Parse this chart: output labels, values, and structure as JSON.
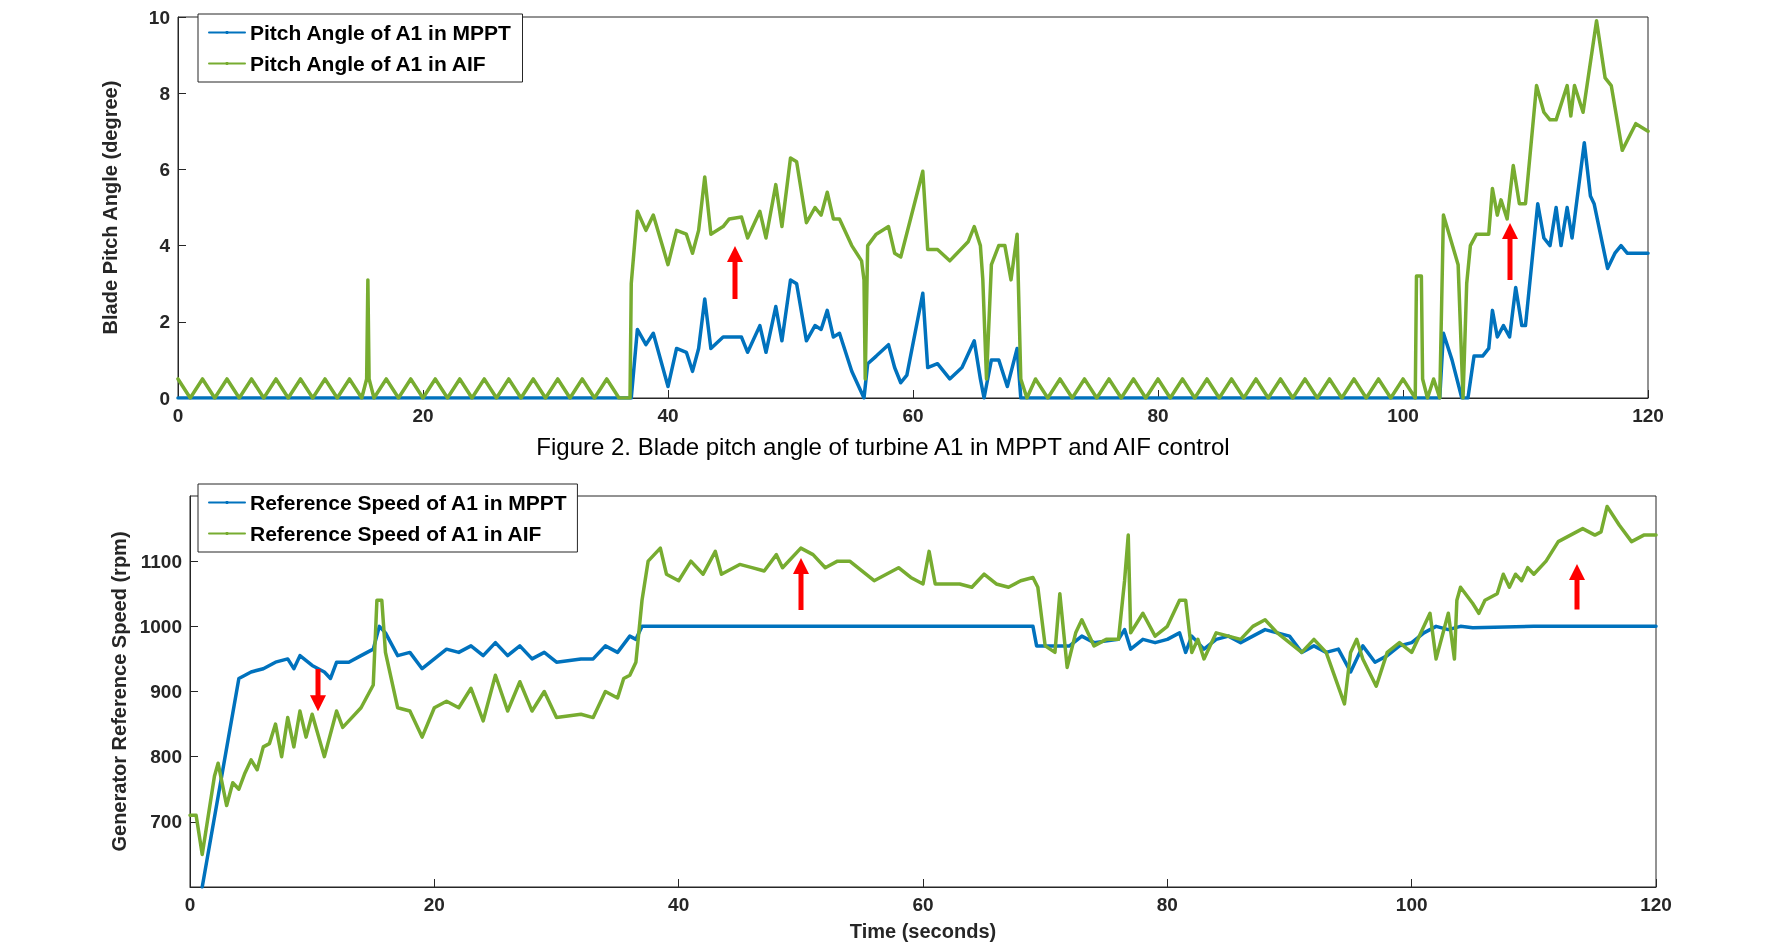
{
  "chart_data": [
    {
      "type": "line",
      "ylabel": "Blade Pitch Angle (degree)",
      "xlim": [
        0,
        120
      ],
      "xticks": [
        0,
        20,
        40,
        60,
        80,
        100,
        120
      ],
      "ylim": [
        0,
        10
      ],
      "yticks": [
        0,
        2,
        4,
        6,
        8,
        10
      ],
      "grid": false,
      "legend": "top left",
      "marker": "none",
      "line_style": "solid",
      "annotations": [
        "Figure 2. Blade pitch angle of turbine A1 in MPPT and AIF control"
      ],
      "series": [
        {
          "name": "Pitch Angle of A1 in MPPT",
          "color": "#0072bd",
          "x": [
            0,
            37,
            37.5,
            38.2,
            38.8,
            40,
            40.7,
            41.5,
            42,
            42.5,
            43,
            43.5,
            44.5,
            46,
            46.5,
            47.5,
            48,
            48.8,
            49.3,
            50,
            50.5,
            51.3,
            52,
            52.5,
            53,
            53.5,
            54,
            55,
            56,
            56.3,
            57,
            58,
            58.5,
            59,
            59.5,
            60.8,
            61.2,
            62,
            63,
            64,
            65,
            65.5,
            65.8,
            66.4,
            67,
            67.7,
            68.5,
            68.8,
            103,
            103.3,
            104,
            104.8,
            105.3,
            105.8,
            106.5,
            107,
            107.3,
            107.7,
            108.2,
            108.7,
            109.2,
            109.7,
            110,
            111,
            111.5,
            112,
            112.5,
            112.9,
            113.4,
            113.8,
            114.8,
            115.3,
            115.6,
            116.7,
            117.3,
            117.8,
            118.3,
            120
          ],
          "values": [
            0,
            0,
            1.8,
            1.4,
            1.7,
            0.3,
            1.3,
            1.2,
            0.7,
            1.3,
            2.6,
            1.3,
            1.6,
            1.6,
            1.2,
            1.9,
            1.2,
            2.4,
            1.5,
            3.1,
            3.0,
            1.5,
            1.9,
            1.8,
            2.3,
            1.6,
            1.7,
            0.7,
            0,
            0.9,
            1.1,
            1.4,
            0.8,
            0.4,
            0.6,
            2.75,
            0.8,
            0.9,
            0.5,
            0.8,
            1.5,
            0.5,
            0,
            1.0,
            1.0,
            0.3,
            1.3,
            0,
            0,
            1.7,
            1.0,
            0,
            0,
            1.1,
            1.1,
            1.3,
            2.3,
            1.6,
            1.9,
            1.6,
            2.9,
            1.9,
            1.9,
            5.1,
            4.2,
            4.0,
            5.0,
            4.0,
            5.0,
            4.2,
            6.7,
            5.3,
            5.1,
            3.4,
            3.8,
            4.0,
            3.8,
            3.8
          ]
        },
        {
          "name": "Pitch Angle of A1 in AIF",
          "color": "#77ac30",
          "x": [
            0,
            1,
            2,
            3,
            4,
            5,
            6,
            7,
            8,
            9,
            10,
            11,
            12,
            13,
            14,
            15,
            15.4,
            15.5,
            15.6,
            16,
            17,
            18,
            19,
            20,
            21,
            22,
            23,
            24,
            25,
            26,
            27,
            28,
            29,
            30,
            31,
            32,
            33,
            34,
            35,
            36,
            36.9,
            37,
            37.5,
            38.2,
            38.8,
            40,
            40.7,
            41.5,
            42,
            42.5,
            43,
            43.5,
            44.5,
            45,
            46,
            46.5,
            47.5,
            48,
            48.8,
            49.3,
            50,
            50.5,
            51.3,
            52,
            52.5,
            53,
            53.5,
            54,
            55,
            55.8,
            56,
            56.1,
            56.3,
            57,
            58,
            58.5,
            59,
            60.8,
            61.2,
            62,
            63,
            64.5,
            65,
            65.5,
            65.7,
            66,
            66.4,
            67,
            67.5,
            68,
            68.5,
            68.8,
            69.3,
            70,
            71,
            72,
            73,
            74,
            75,
            76,
            77,
            78,
            79,
            80,
            81,
            82,
            83,
            84,
            85,
            86,
            87,
            88,
            89,
            90,
            91,
            92,
            93,
            94,
            95,
            96,
            97,
            98,
            99,
            100,
            101,
            101.1,
            101.5,
            101.6,
            102,
            102.5,
            103,
            103.3,
            104.5,
            104.9,
            105.2,
            105.5,
            106,
            107,
            107.3,
            107.7,
            108,
            108.5,
            109,
            109.5,
            110,
            110.9,
            111.5,
            112,
            112.5,
            113.4,
            113.7,
            114,
            114.7,
            115.8,
            116.5,
            117,
            117.9,
            119,
            120
          ],
          "values": [
            0.5,
            0,
            0.5,
            0,
            0.5,
            0,
            0.5,
            0,
            0.5,
            0,
            0.5,
            0,
            0.5,
            0,
            0.5,
            0,
            0.5,
            3.1,
            0.5,
            0,
            0.5,
            0,
            0.5,
            0,
            0.5,
            0,
            0.5,
            0,
            0.5,
            0,
            0.5,
            0,
            0.5,
            0,
            0.5,
            0,
            0.5,
            0,
            0.5,
            0,
            0,
            3,
            4.9,
            4.4,
            4.8,
            3.5,
            4.4,
            4.3,
            3.8,
            4.4,
            5.8,
            4.3,
            4.5,
            4.7,
            4.75,
            4.2,
            4.9,
            4.2,
            5.6,
            4.5,
            6.3,
            6.2,
            4.6,
            5.0,
            4.8,
            5.4,
            4.7,
            4.7,
            4.0,
            3.6,
            3.1,
            0.5,
            4.0,
            4.3,
            4.5,
            3.8,
            3.7,
            5.95,
            3.9,
            3.9,
            3.6,
            4.1,
            4.5,
            4.0,
            3.1,
            0.5,
            3.5,
            4.0,
            4.0,
            3.1,
            4.3,
            0.5,
            0,
            0.5,
            0,
            0.5,
            0,
            0.5,
            0,
            0.5,
            0,
            0.5,
            0,
            0.5,
            0,
            0.5,
            0,
            0.5,
            0,
            0.5,
            0,
            0.5,
            0,
            0.5,
            0,
            0.5,
            0,
            0.5,
            0,
            0.5,
            0,
            0.5,
            0,
            0.5,
            0,
            3.2,
            3.2,
            0.5,
            0,
            0.5,
            0,
            4.8,
            3.5,
            0,
            3.0,
            4.0,
            4.3,
            4.3,
            5.5,
            4.8,
            5.2,
            4.7,
            6.1,
            5.1,
            5.1,
            8.2,
            7.5,
            7.3,
            7.3,
            8.2,
            7.4,
            8.2,
            7.5,
            9.9,
            8.4,
            8.2,
            6.5,
            7.2,
            7.0
          ]
        }
      ]
    },
    {
      "type": "line",
      "xlabel": "Time (seconds)",
      "ylabel": "Generator Reference Speed (rpm)",
      "xlim": [
        0,
        120
      ],
      "xticks": [
        0,
        20,
        40,
        60,
        80,
        100,
        120
      ],
      "ylim": [
        600,
        1200
      ],
      "yticks": [
        700,
        800,
        900,
        1000,
        1100
      ],
      "grid": false,
      "legend": "top left",
      "marker": "none",
      "line_style": "solid",
      "series": [
        {
          "name": "Reference Speed of A1 in MPPT",
          "color": "#0072bd",
          "x": [
            1,
            4,
            5,
            6,
            7,
            8,
            8.5,
            9,
            10,
            11,
            11.5,
            12,
            13,
            14,
            15,
            15.5,
            16,
            17,
            18,
            19,
            20,
            21,
            22,
            23,
            24,
            25,
            26,
            27,
            28,
            29,
            30,
            32,
            33,
            34,
            35,
            36,
            36.5,
            37,
            45,
            55,
            69,
            69.3,
            72,
            73,
            74,
            76,
            76.5,
            77,
            78,
            79,
            80,
            81,
            81.5,
            82,
            83,
            84,
            85,
            86,
            87,
            88,
            89,
            90,
            91,
            92,
            93,
            94,
            95,
            96,
            97,
            98,
            99,
            100,
            101,
            102,
            103,
            104,
            105,
            110,
            115,
            120
          ],
          "values": [
            600,
            920,
            930,
            935,
            945,
            950,
            935,
            955,
            940,
            930,
            920,
            945,
            945,
            955,
            965,
            1000,
            990,
            955,
            960,
            935,
            950,
            965,
            960,
            970,
            955,
            975,
            955,
            970,
            950,
            960,
            945,
            950,
            950,
            970,
            960,
            985,
            980,
            1000,
            1000,
            1000,
            1000,
            970,
            970,
            985,
            975,
            980,
            995,
            965,
            980,
            975,
            980,
            990,
            960,
            985,
            965,
            980,
            985,
            975,
            985,
            995,
            990,
            985,
            960,
            970,
            960,
            965,
            930,
            970,
            945,
            955,
            970,
            975,
            990,
            1000,
            995,
            1000,
            998,
            1000,
            1000,
            1000
          ]
        },
        {
          "name": "Reference Speed of A1 in AIF",
          "color": "#77ac30",
          "x": [
            0,
            0.5,
            1,
            2,
            2.3,
            3,
            3.5,
            4,
            4.5,
            5,
            5.5,
            6,
            6.5,
            7,
            7.5,
            8,
            8.5,
            9,
            9.5,
            10,
            11,
            12,
            12.5,
            13,
            14,
            15,
            15.3,
            15.7,
            16,
            17,
            18,
            19,
            20,
            21,
            22,
            23,
            24,
            25,
            26,
            27,
            28,
            29,
            30,
            32,
            33,
            34,
            35,
            35.5,
            36,
            36.5,
            37,
            37.5,
            38.5,
            39,
            40,
            41,
            42,
            43,
            43.5,
            45,
            46,
            47,
            48,
            48.5,
            50,
            51,
            52,
            53,
            54,
            55,
            56,
            57,
            58,
            59,
            60,
            60.5,
            61,
            62,
            63,
            64,
            65,
            66,
            67,
            68,
            69,
            69.4,
            70,
            70.8,
            71.2,
            71.8,
            72.5,
            73,
            74,
            75,
            76,
            76.5,
            76.8,
            77,
            78,
            79,
            80,
            81,
            81.5,
            82,
            82.5,
            83,
            84,
            85,
            86,
            87,
            88,
            89,
            90,
            91,
            92,
            93,
            94.5,
            95,
            95.5,
            96,
            97.1,
            98,
            99,
            100,
            101,
            101.5,
            102,
            103,
            103.5,
            103.7,
            104,
            105,
            105.5,
            106,
            107,
            107.5,
            108,
            108.5,
            109,
            109.5,
            110,
            111,
            112,
            113,
            114,
            115,
            115.5,
            116,
            117,
            118,
            119,
            120
          ],
          "values": [
            710,
            710,
            650,
            770,
            790,
            725,
            760,
            750,
            775,
            795,
            780,
            815,
            820,
            850,
            800,
            860,
            815,
            870,
            830,
            865,
            800,
            870,
            845,
            855,
            875,
            910,
            1040,
            1040,
            960,
            875,
            870,
            830,
            875,
            885,
            875,
            905,
            855,
            925,
            870,
            915,
            870,
            900,
            860,
            865,
            860,
            900,
            890,
            920,
            925,
            945,
            1040,
            1100,
            1120,
            1080,
            1070,
            1100,
            1080,
            1115,
            1080,
            1095,
            1090,
            1085,
            1110,
            1090,
            1120,
            1110,
            1090,
            1100,
            1100,
            1085,
            1070,
            1080,
            1090,
            1075,
            1065,
            1115,
            1065,
            1065,
            1065,
            1060,
            1080,
            1065,
            1060,
            1070,
            1075,
            1060,
            970,
            960,
            1050,
            937,
            990,
            1010,
            970,
            980,
            980,
            1070,
            1140,
            990,
            1020,
            985,
            1000,
            1040,
            1040,
            960,
            980,
            950,
            990,
            985,
            980,
            1000,
            1010,
            990,
            975,
            960,
            980,
            960,
            881,
            960,
            980,
            950,
            908,
            960,
            975,
            960,
            1000,
            1020,
            950,
            1020,
            950,
            1040,
            1060,
            1035,
            1020,
            1040,
            1050,
            1080,
            1060,
            1080,
            1070,
            1090,
            1080,
            1100,
            1130,
            1140,
            1150,
            1140,
            1145,
            1184,
            1155,
            1130,
            1140,
            1140
          ]
        }
      ]
    }
  ]
}
